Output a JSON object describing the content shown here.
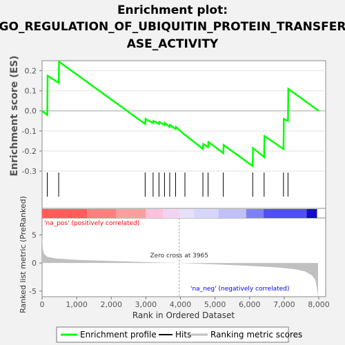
{
  "chart_data": {
    "type": "line",
    "title_lines": [
      "Enrichment plot:",
      "GO_REGULATION_OF_UBIQUITIN_PROTEIN_TRANSFER",
      "ASE_ACTIVITY"
    ],
    "top_panel": {
      "ylabel": "Enrichment score (ES)",
      "ylim": [
        -0.3,
        0.25
      ],
      "yticks": [
        "-0.3",
        "-0.2",
        "-0.1",
        "0.0",
        "0.1",
        "0.2"
      ],
      "series": [
        {
          "name": "Enrichment profile",
          "color": "#00ff00",
          "x": [
            0,
            150,
            160,
            480,
            490,
            2980,
            2990,
            3210,
            3220,
            3380,
            3390,
            3540,
            3550,
            3690,
            3700,
            3860,
            3870,
            4130,
            4140,
            4650,
            4660,
            4800,
            4810,
            5240,
            5250,
            6090,
            6100,
            6420,
            6430,
            6980,
            6990,
            7110,
            7120,
            8000
          ],
          "y": [
            0.0,
            -0.02,
            0.175,
            0.14,
            0.245,
            -0.065,
            -0.04,
            -0.06,
            -0.05,
            -0.065,
            -0.055,
            -0.07,
            -0.06,
            -0.08,
            -0.07,
            -0.09,
            -0.08,
            -0.12,
            -0.12,
            -0.19,
            -0.165,
            -0.18,
            -0.155,
            -0.21,
            -0.17,
            -0.275,
            -0.185,
            -0.23,
            -0.125,
            -0.19,
            -0.04,
            -0.05,
            0.11,
            0.0
          ]
        }
      ]
    },
    "hits": [
      150,
      480,
      2980,
      3210,
      3380,
      3540,
      3690,
      3860,
      4130,
      4650,
      4800,
      5240,
      6090,
      6420,
      6980,
      7110
    ],
    "color_bar": {
      "segments": [
        {
          "from": 0,
          "to": 1300,
          "color": "#ff5c5c"
        },
        {
          "from": 1300,
          "to": 2150,
          "color": "#ff7f7f"
        },
        {
          "from": 2150,
          "to": 3000,
          "color": "#ff9e9e"
        },
        {
          "from": 3000,
          "to": 3500,
          "color": "#ffc2dd"
        },
        {
          "from": 3500,
          "to": 3965,
          "color": "#f2d4f2"
        },
        {
          "from": 3965,
          "to": 4400,
          "color": "#e6e0fa"
        },
        {
          "from": 4400,
          "to": 5100,
          "color": "#d6d6fa"
        },
        {
          "from": 5100,
          "to": 5900,
          "color": "#c0c0fa"
        },
        {
          "from": 5900,
          "to": 6400,
          "color": "#8080f5"
        },
        {
          "from": 6400,
          "to": 7650,
          "color": "#5050ef"
        },
        {
          "from": 7650,
          "to": 7950,
          "color": "#1010c0"
        }
      ]
    },
    "bottom_panel": {
      "ylabel": "Ranked list metric (PreRanked)",
      "xlabel": "Rank in Ordered Dataset",
      "ylim": [
        -6,
        8
      ],
      "yticks": [
        "-5",
        "0",
        "5"
      ],
      "xlim": [
        0,
        8200
      ],
      "xticks": [
        "0",
        "1,000",
        "2,000",
        "3,000",
        "4,000",
        "5,000",
        "6,000",
        "7,000",
        "8,000"
      ],
      "metric_profile": {
        "x": [
          0,
          20,
          60,
          150,
          400,
          1000,
          2000,
          3000,
          3965,
          5000,
          6000,
          6800,
          7300,
          7600,
          7800,
          7900,
          7950,
          7980
        ],
        "y": [
          5.2,
          2.5,
          1.6,
          1.1,
          0.8,
          0.55,
          0.35,
          0.15,
          0.0,
          -0.25,
          -0.5,
          -0.8,
          -1.1,
          -1.5,
          -2.2,
          -3.0,
          -4.5,
          -6.0
        ]
      },
      "zero_cross_label": "Zero cross at 3965",
      "pos_label": "'na_pos' (positively correlated)",
      "neg_label": "'na_neg' (negatively correlated)",
      "pos_color": "#ff0000",
      "neg_color": "#0000ff"
    },
    "legend": [
      {
        "label": "Enrichment profile",
        "color": "#00ff00"
      },
      {
        "label": "Hits",
        "color": "#000000"
      },
      {
        "label": "Ranking metric scores",
        "color": "#c0c0c0"
      }
    ]
  }
}
